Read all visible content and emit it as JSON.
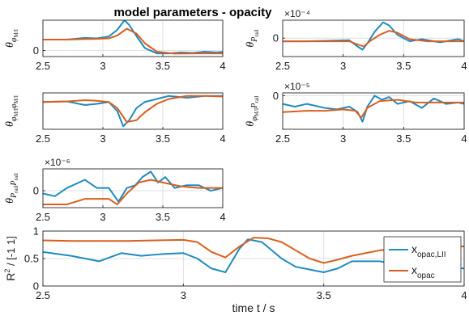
{
  "figure_title": "model parameters - opacity",
  "colors": {
    "blue": "#1f8bbd",
    "orange": "#d95f1f",
    "grid": "#d8d8d8",
    "axis": "#262626"
  },
  "chart_data": [
    {
      "type": "line",
      "id": "p1",
      "ylabel": {
        "main": "θ",
        "sub": "φ",
        "subsub": "M/I"
      },
      "xlim": [
        2.5,
        4
      ],
      "ylim": [
        -0.25,
        1.25
      ],
      "xticks": [
        "2.5",
        "3",
        "3.5",
        "4"
      ],
      "xtick_values": [
        2.5,
        3,
        3.5,
        4
      ],
      "yticks": [
        "0"
      ],
      "ytick_values": [
        0
      ],
      "exponent": "",
      "grid": true,
      "series": [
        {
          "color": "blue",
          "x": [
            2.5,
            2.7,
            2.85,
            2.95,
            3.05,
            3.12,
            3.18,
            3.22,
            3.28,
            3.35,
            3.45,
            3.55,
            3.65,
            3.75,
            3.85,
            3.95,
            4.0
          ],
          "y": [
            0.45,
            0.45,
            0.52,
            0.5,
            0.58,
            0.85,
            1.25,
            1.05,
            0.6,
            0.1,
            -0.12,
            -0.12,
            -0.08,
            -0.1,
            -0.05,
            -0.08,
            -0.06
          ]
        },
        {
          "color": "orange",
          "x": [
            2.5,
            2.7,
            2.85,
            2.95,
            3.05,
            3.12,
            3.2,
            3.28,
            3.35,
            3.45,
            3.6,
            3.8,
            4.0
          ],
          "y": [
            0.45,
            0.45,
            0.47,
            0.48,
            0.5,
            0.62,
            0.9,
            0.7,
            0.3,
            -0.05,
            -0.13,
            -0.12,
            -0.12
          ]
        }
      ]
    },
    {
      "type": "line",
      "id": "p2",
      "ylabel": {
        "main": "θ",
        "sub": "P",
        "subsub": "rail"
      },
      "xlim": [
        2.5,
        4
      ],
      "ylim": [
        -0.000175,
        0.00017
      ],
      "xticks": [
        "2.5",
        "3",
        "3.5",
        "4"
      ],
      "xtick_values": [
        2.5,
        3,
        3.5,
        4
      ],
      "yticks": [
        "0"
      ],
      "ytick_values": [
        0
      ],
      "exponent": "×10⁻⁴",
      "grid": true,
      "series": [
        {
          "color": "blue",
          "x": [
            2.5,
            2.7,
            2.9,
            3.05,
            3.12,
            3.16,
            3.2,
            3.26,
            3.33,
            3.38,
            3.45,
            3.55,
            3.65,
            3.8,
            3.95,
            4.0
          ],
          "y": [
            -3e-05,
            -3e-05,
            -2.5e-05,
            -2e-05,
            -8e-05,
            -0.00011,
            -5e-05,
            6e-05,
            0.00015,
            0.00012,
            3e-05,
            -3e-05,
            -1e-05,
            -4e-05,
            -1e-05,
            -3e-05
          ]
        },
        {
          "color": "orange",
          "x": [
            2.5,
            2.7,
            2.9,
            3.05,
            3.12,
            3.17,
            3.22,
            3.3,
            3.38,
            3.45,
            3.55,
            3.7,
            3.85,
            4.0
          ],
          "y": [
            -3e-05,
            -3e-05,
            -3e-05,
            -3e-05,
            -6e-05,
            -8e-05,
            -3e-05,
            3e-05,
            7e-05,
            5e-05,
            -1e-05,
            -3e-05,
            -3e-05,
            -3e-05
          ]
        }
      ]
    },
    {
      "type": "line",
      "id": "p3",
      "ylabel": {
        "main": "θ",
        "sub": "φ",
        "subsub": "M/I",
        "sub2": "φ",
        "subsub2": "M/I"
      },
      "xlim": [
        2.5,
        4
      ],
      "ylim": [
        -0.5,
        0.1
      ],
      "xticks": [
        "2.5",
        "3",
        "3.5",
        "4"
      ],
      "xtick_values": [
        2.5,
        3,
        3.5,
        4
      ],
      "yticks": [],
      "ytick_values": [],
      "exponent": "",
      "grid": true,
      "series": [
        {
          "color": "blue",
          "x": [
            2.5,
            2.7,
            2.85,
            2.95,
            3.05,
            3.12,
            3.17,
            3.22,
            3.28,
            3.35,
            3.45,
            3.55,
            3.7,
            3.85,
            4.0
          ],
          "y": [
            -0.05,
            -0.04,
            -0.1,
            -0.08,
            -0.05,
            -0.2,
            -0.45,
            -0.35,
            -0.15,
            -0.05,
            0.0,
            0.05,
            0.02,
            0.05,
            0.05
          ]
        },
        {
          "color": "orange",
          "x": [
            2.5,
            2.7,
            2.85,
            2.95,
            3.05,
            3.12,
            3.2,
            3.28,
            3.35,
            3.45,
            3.55,
            3.7,
            3.85,
            4.0
          ],
          "y": [
            -0.05,
            -0.04,
            -0.02,
            -0.03,
            -0.05,
            -0.15,
            -0.38,
            -0.35,
            -0.22,
            -0.08,
            0.0,
            0.05,
            0.05,
            0.04
          ]
        }
      ]
    },
    {
      "type": "line",
      "id": "p4",
      "ylabel": {
        "main": "θ",
        "sub": "φ",
        "subsub": "M/I",
        "sub2": "P",
        "subsub2": "rail"
      },
      "xlim": [
        2.5,
        4
      ],
      "ylim": [
        -2.45e-05,
        2e-06
      ],
      "xticks": [
        "2.5",
        "3",
        "3.5",
        "4"
      ],
      "xtick_values": [
        2.5,
        3,
        3.5,
        4
      ],
      "yticks": [
        "0"
      ],
      "ytick_values": [
        0
      ],
      "exponent": "×10⁻⁵",
      "grid": true,
      "series": [
        {
          "color": "blue",
          "x": [
            2.5,
            2.6,
            2.7,
            2.85,
            2.95,
            3.05,
            3.12,
            3.16,
            3.2,
            3.26,
            3.32,
            3.38,
            3.45,
            3.55,
            3.65,
            3.75,
            3.85,
            3.95,
            4.0
          ],
          "y": [
            -6e-06,
            -8e-06,
            -6e-06,
            -9e-06,
            -1e-05,
            -8e-06,
            -1.2e-05,
            -1.9e-05,
            -8e-06,
            0.0,
            -3e-06,
            -1e-06,
            -6e-06,
            -4e-06,
            -9e-06,
            -2e-06,
            -6e-06,
            -5e-06,
            -6e-06
          ]
        },
        {
          "color": "orange",
          "x": [
            2.5,
            2.7,
            2.85,
            3.0,
            3.1,
            3.15,
            3.2,
            3.3,
            3.45,
            3.6,
            3.8,
            4.0
          ],
          "y": [
            -1.2e-05,
            -1.1e-05,
            -1.1e-05,
            -1e-05,
            -1.1e-05,
            -1.6e-05,
            -9e-06,
            -4e-06,
            -3e-06,
            -5e-06,
            -5e-06,
            -5e-06
          ]
        }
      ]
    },
    {
      "type": "line",
      "id": "p5",
      "ylabel": {
        "main": "θ",
        "sub": "P",
        "subsub": "rail",
        "sub2": "P",
        "subsub2": "rail"
      },
      "xlim": [
        2.5,
        4
      ],
      "ylim": [
        -3.1e-06,
        4e-06
      ],
      "xticks": [
        "2.5",
        "3",
        "3.5",
        "4"
      ],
      "xtick_values": [
        2.5,
        3,
        3.5,
        4
      ],
      "yticks": [
        "0"
      ],
      "ytick_values": [
        0
      ],
      "exponent": "×10⁻⁶",
      "grid": true,
      "series": [
        {
          "color": "blue",
          "x": [
            2.5,
            2.6,
            2.7,
            2.85,
            2.95,
            3.05,
            3.13,
            3.2,
            3.27,
            3.33,
            3.4,
            3.46,
            3.52,
            3.6,
            3.7,
            3.8,
            3.9,
            4.0
          ],
          "y": [
            -5e-07,
            -1e-06,
            5e-07,
            2e-06,
            5e-07,
            5e-07,
            -2e-06,
            5e-07,
            1e-06,
            2.5e-06,
            3.5e-06,
            1.5e-06,
            2.5e-06,
            5e-07,
            1e-06,
            1e-06,
            0.0,
            5e-07
          ]
        },
        {
          "color": "orange",
          "x": [
            2.5,
            2.7,
            2.85,
            2.95,
            3.05,
            3.12,
            3.2,
            3.3,
            3.4,
            3.5,
            3.65,
            3.8,
            4.0
          ],
          "y": [
            -2.5e-06,
            -2.5e-06,
            -1.5e-06,
            -1.5e-06,
            -1.5e-06,
            -2.5e-06,
            -5e-07,
            1.5e-06,
            2e-06,
            1.5e-06,
            8e-07,
            5e-07,
            5e-07
          ]
        }
      ]
    },
    {
      "type": "line",
      "id": "p6",
      "ylabel": {
        "main": "R",
        "sup": "2",
        "suffix": " / [-1 1]"
      },
      "xlabel": "time t / s",
      "xlim": [
        2.5,
        4
      ],
      "ylim": [
        0,
        1
      ],
      "xticks": [
        "2.5",
        "3",
        "3.5",
        "4"
      ],
      "xtick_values": [
        2.5,
        3,
        3.5,
        4
      ],
      "yticks": [
        "0",
        "0.5",
        "1"
      ],
      "ytick_values": [
        0,
        0.5,
        1
      ],
      "exponent": "",
      "grid": true,
      "legend": {
        "position": "right",
        "entries": [
          {
            "color": "blue",
            "main": "x",
            "sub": "opac,LII"
          },
          {
            "color": "orange",
            "main": "x",
            "sub": "opac"
          }
        ]
      },
      "series": [
        {
          "color": "blue",
          "x": [
            2.5,
            2.6,
            2.7,
            2.78,
            2.85,
            2.92,
            3.0,
            3.05,
            3.1,
            3.15,
            3.2,
            3.23,
            3.28,
            3.35,
            3.4,
            3.45,
            3.5,
            3.55,
            3.6,
            3.7,
            3.8,
            3.9,
            4.0
          ],
          "y": [
            0.62,
            0.55,
            0.45,
            0.6,
            0.55,
            0.58,
            0.6,
            0.5,
            0.32,
            0.25,
            0.68,
            0.85,
            0.8,
            0.5,
            0.35,
            0.3,
            0.25,
            0.32,
            0.45,
            0.45,
            0.35,
            0.35,
            0.32
          ]
        },
        {
          "color": "orange",
          "x": [
            2.5,
            2.6,
            2.7,
            2.8,
            2.9,
            3.0,
            3.05,
            3.1,
            3.15,
            3.2,
            3.25,
            3.3,
            3.35,
            3.4,
            3.45,
            3.5,
            3.55,
            3.6,
            3.7,
            3.8,
            3.9,
            4.0
          ],
          "y": [
            0.83,
            0.82,
            0.82,
            0.82,
            0.83,
            0.84,
            0.8,
            0.62,
            0.52,
            0.72,
            0.88,
            0.87,
            0.8,
            0.65,
            0.5,
            0.42,
            0.48,
            0.55,
            0.65,
            0.7,
            0.72,
            0.72
          ]
        }
      ]
    }
  ]
}
